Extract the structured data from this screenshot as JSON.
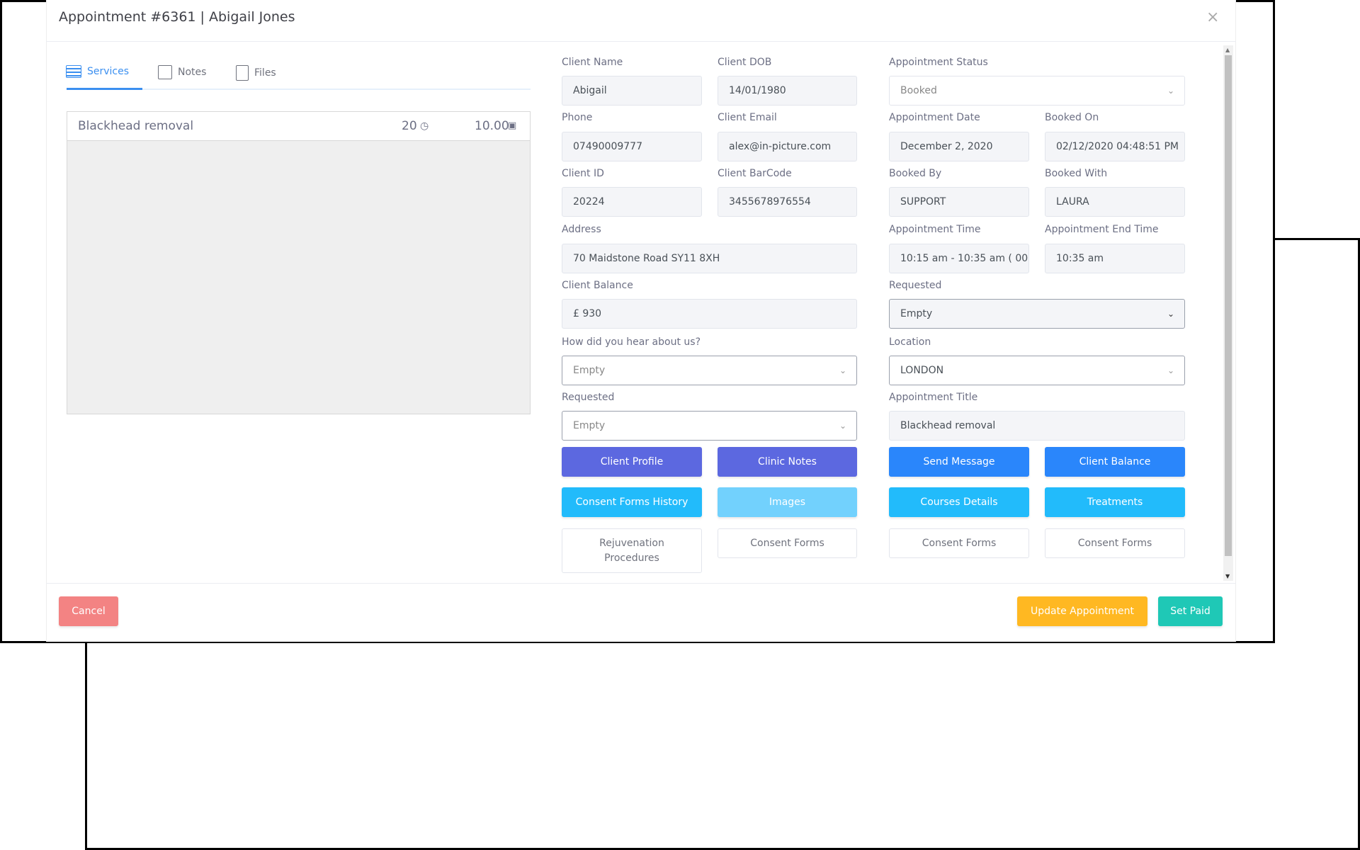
{
  "dialog": {
    "title": "Appointment #6361 | Abigail Jones",
    "close": "×"
  },
  "tabs": [
    {
      "label": "Services",
      "icon": "services-list-icon"
    },
    {
      "label": "Notes",
      "icon": "note-icon"
    },
    {
      "label": "Files",
      "icon": "file-icon"
    }
  ],
  "service": {
    "name": "Blackhead removal",
    "duration": "20",
    "price": "10.00"
  },
  "fields": {
    "client_name": {
      "label": "Client Name",
      "value": "Abigail"
    },
    "client_dob": {
      "label": "Client DOB",
      "value": "14/01/1980"
    },
    "appointment_status": {
      "label": "Appointment Status",
      "value": "Booked"
    },
    "phone": {
      "label": "Phone",
      "value": "07490009777"
    },
    "client_email": {
      "label": "Client Email",
      "value": "alex@in-picture.com"
    },
    "appointment_date": {
      "label": "Appointment Date",
      "value": "December 2, 2020"
    },
    "booked_on": {
      "label": "Booked On",
      "value": "02/12/2020 04:48:51 PM"
    },
    "client_id": {
      "label": "Client ID",
      "value": "20224"
    },
    "client_barcode": {
      "label": "Client BarCode",
      "value": "3455678976554"
    },
    "booked_by": {
      "label": "Booked By",
      "value": "SUPPORT"
    },
    "booked_with": {
      "label": "Booked With",
      "value": "LAURA"
    },
    "address": {
      "label": "Address",
      "value": "70  Maidstone Road SY11 8XH"
    },
    "appointment_time": {
      "label": "Appointment Time",
      "value": "10:15 am - 10:35 am ( 00"
    },
    "appointment_end_time": {
      "label": "Appointment End Time",
      "value": "10:35 am"
    },
    "client_balance": {
      "label": "Client Balance",
      "value": "£ 930"
    },
    "requested_right": {
      "label": "Requested",
      "value": "Empty"
    },
    "hear_about": {
      "label": "How did you hear about us?",
      "value": "Empty"
    },
    "location": {
      "label": "Location",
      "value": "LONDON"
    },
    "requested_left": {
      "label": "Requested",
      "value": "Empty"
    },
    "appointment_title": {
      "label": "Appointment Title",
      "value": "Blackhead removal"
    }
  },
  "buttons": {
    "client_profile": "Client Profile",
    "clinic_notes": "Clinic Notes",
    "send_message": "Send Message",
    "client_balance": "Client Balance",
    "consent_forms_history": "Consent Forms History",
    "images": "Images",
    "courses_details": "Courses Details",
    "treatments": "Treatments",
    "rejuvenation": "Rejuvenation Procedures",
    "consent_forms_1": "Consent Forms",
    "consent_forms_2": "Consent Forms",
    "consent_forms_3": "Consent Forms"
  },
  "footer": {
    "cancel": "Cancel",
    "update": "Update Appointment",
    "set_paid": "Set Paid"
  },
  "colors": {
    "purple": "#5c68e0",
    "blue": "#2a86fb",
    "cyan": "#22bbfb",
    "light_cyan": "#72d1fd",
    "cancel": "#f38383",
    "update": "#ffb822",
    "set_paid": "#1fc8b6",
    "tab_active": "#3b8ff0"
  }
}
